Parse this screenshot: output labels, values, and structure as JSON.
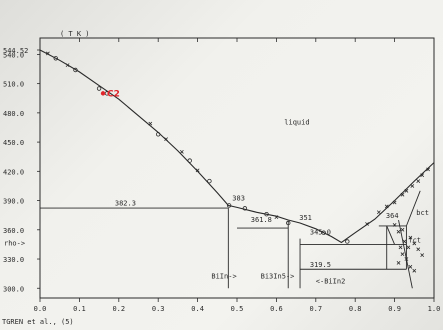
{
  "chart_data": {
    "type": "scatter",
    "title": "",
    "axis_unit": "( T K )",
    "source_note": "TGREN et al., (5)",
    "xlim": [
      0.0,
      1.0
    ],
    "ylim": [
      290.0,
      544.52
    ],
    "x_ticks": [
      "0.0",
      "0.1",
      "0.2",
      "0.3",
      "0.4",
      "0.5",
      "0.6",
      "0.7",
      "0.8",
      "0.9",
      "1.0"
    ],
    "y_ticks": [
      {
        "value": 544.52,
        "label": "544.52"
      },
      {
        "value": 540,
        "label": "540.0"
      },
      {
        "value": 510,
        "label": "510.0"
      },
      {
        "value": 480,
        "label": "480.0"
      },
      {
        "value": 450,
        "label": "450.0"
      },
      {
        "value": 420,
        "label": "420.0"
      },
      {
        "value": 390,
        "label": "390.0"
      },
      {
        "value": 360,
        "label": "360.0"
      },
      {
        "value": 330,
        "label": "330.0"
      },
      {
        "value": 300,
        "label": "300.0"
      }
    ],
    "side_marks": [
      {
        "label": "rho->",
        "value": 347
      }
    ],
    "phases": [
      {
        "label": "liquid",
        "x": 0.62,
        "y": 468
      },
      {
        "label": "bct",
        "x": 0.955,
        "y": 375
      },
      {
        "label": "fct",
        "x": 0.935,
        "y": 347
      },
      {
        "label": "BiIn->",
        "x": 0.435,
        "y": 310
      },
      {
        "label": "Bi3In5->",
        "x": 0.56,
        "y": 310
      },
      {
        "label": "<-BiIn2",
        "x": 0.7,
        "y": 305
      }
    ],
    "temperature_labels": [
      {
        "label": "382.3",
        "x": 0.19,
        "y": 385
      },
      {
        "label": "383",
        "x": 0.488,
        "y": 390
      },
      {
        "label": "361.8",
        "x": 0.535,
        "y": 368
      },
      {
        "label": "351",
        "x": 0.658,
        "y": 370
      },
      {
        "label": "345.0",
        "x": 0.685,
        "y": 355
      },
      {
        "label": "319.5",
        "x": 0.685,
        "y": 322
      },
      {
        "label": "364",
        "x": 0.878,
        "y": 372
      }
    ],
    "liquidus": [
      {
        "x": 0.0,
        "y": 544.52
      },
      {
        "x": 0.05,
        "y": 534
      },
      {
        "x": 0.1,
        "y": 522
      },
      {
        "x": 0.15,
        "y": 508
      },
      {
        "x": 0.2,
        "y": 494
      },
      {
        "x": 0.25,
        "y": 477
      },
      {
        "x": 0.3,
        "y": 460
      },
      {
        "x": 0.35,
        "y": 441
      },
      {
        "x": 0.4,
        "y": 420
      },
      {
        "x": 0.45,
        "y": 398
      },
      {
        "x": 0.478,
        "y": 385
      },
      {
        "x": 0.5,
        "y": 383
      },
      {
        "x": 0.55,
        "y": 378
      },
      {
        "x": 0.6,
        "y": 374
      },
      {
        "x": 0.63,
        "y": 370
      },
      {
        "x": 0.66,
        "y": 367
      },
      {
        "x": 0.7,
        "y": 361
      },
      {
        "x": 0.74,
        "y": 353
      },
      {
        "x": 0.765,
        "y": 347
      },
      {
        "x": 0.8,
        "y": 357
      },
      {
        "x": 0.85,
        "y": 371
      },
      {
        "x": 0.9,
        "y": 390
      },
      {
        "x": 0.95,
        "y": 410
      },
      {
        "x": 1.0,
        "y": 429
      }
    ],
    "experimental_points": [
      {
        "x": 0.02,
        "y": 541,
        "m": "x"
      },
      {
        "x": 0.04,
        "y": 536,
        "m": "o"
      },
      {
        "x": 0.07,
        "y": 529,
        "m": "x"
      },
      {
        "x": 0.09,
        "y": 524,
        "m": "o"
      },
      {
        "x": 0.15,
        "y": 505,
        "m": "o"
      },
      {
        "x": 0.17,
        "y": 500,
        "m": "o"
      },
      {
        "x": 0.28,
        "y": 469,
        "m": "x"
      },
      {
        "x": 0.3,
        "y": 458,
        "m": "o"
      },
      {
        "x": 0.32,
        "y": 453,
        "m": "x"
      },
      {
        "x": 0.36,
        "y": 440,
        "m": "x"
      },
      {
        "x": 0.38,
        "y": 431,
        "m": "o"
      },
      {
        "x": 0.4,
        "y": 421,
        "m": "x"
      },
      {
        "x": 0.43,
        "y": 410,
        "m": "o"
      },
      {
        "x": 0.48,
        "y": 385,
        "m": "o"
      },
      {
        "x": 0.52,
        "y": 382,
        "m": "o"
      },
      {
        "x": 0.575,
        "y": 376,
        "m": "o"
      },
      {
        "x": 0.6,
        "y": 373,
        "m": "x"
      },
      {
        "x": 0.63,
        "y": 367,
        "m": "o"
      },
      {
        "x": 0.72,
        "y": 357,
        "m": "o"
      },
      {
        "x": 0.78,
        "y": 348,
        "m": "o"
      },
      {
        "x": 0.83,
        "y": 366,
        "m": "x"
      },
      {
        "x": 0.86,
        "y": 378,
        "m": "x"
      },
      {
        "x": 0.88,
        "y": 384,
        "m": "x"
      },
      {
        "x": 0.9,
        "y": 388,
        "m": "x"
      },
      {
        "x": 0.92,
        "y": 396,
        "m": "x"
      },
      {
        "x": 0.93,
        "y": 400,
        "m": "x"
      },
      {
        "x": 0.945,
        "y": 405,
        "m": "x"
      },
      {
        "x": 0.96,
        "y": 410,
        "m": "x"
      },
      {
        "x": 0.97,
        "y": 416,
        "m": "x"
      },
      {
        "x": 0.985,
        "y": 422,
        "m": "x"
      },
      {
        "x": 0.9,
        "y": 365,
        "m": "x"
      },
      {
        "x": 0.92,
        "y": 360,
        "m": "x"
      },
      {
        "x": 0.94,
        "y": 352,
        "m": "x"
      },
      {
        "x": 0.95,
        "y": 346,
        "m": "x"
      },
      {
        "x": 0.96,
        "y": 340,
        "m": "x"
      },
      {
        "x": 0.97,
        "y": 334,
        "m": "x"
      },
      {
        "x": 0.91,
        "y": 358,
        "m": "x"
      },
      {
        "x": 0.925,
        "y": 348,
        "m": "x"
      },
      {
        "x": 0.935,
        "y": 342,
        "m": "x"
      },
      {
        "x": 0.92,
        "y": 335,
        "m": "x"
      },
      {
        "x": 0.93,
        "y": 330,
        "m": "x"
      },
      {
        "x": 0.91,
        "y": 326,
        "m": "x"
      },
      {
        "x": 0.94,
        "y": 322,
        "m": "x"
      },
      {
        "x": 0.95,
        "y": 318,
        "m": "x"
      },
      {
        "x": 0.915,
        "y": 342,
        "m": "x"
      }
    ],
    "highlight": {
      "label": "C2",
      "x": 0.16,
      "y": 500,
      "color": "#e0252b"
    },
    "grid": false,
    "legend": "none"
  }
}
